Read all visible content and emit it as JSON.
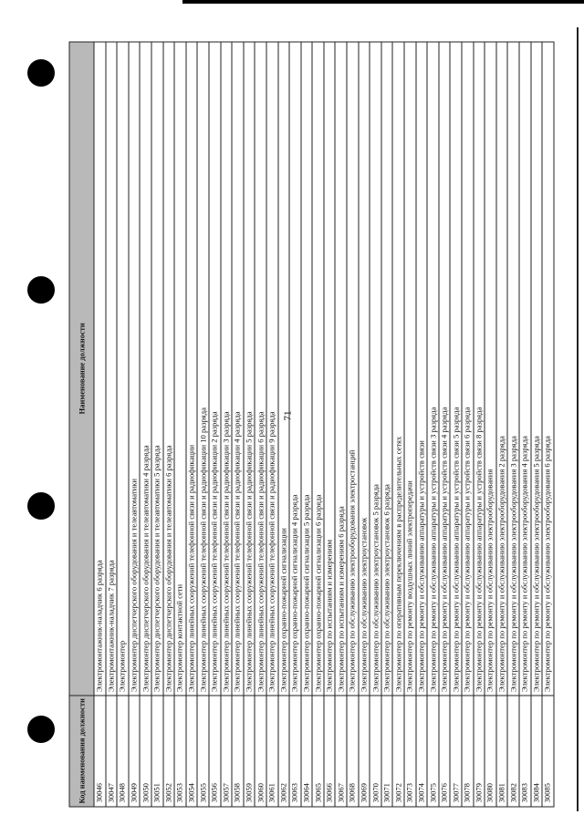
{
  "page_number": "71",
  "table": {
    "headers": {
      "code": "Код наименования должности",
      "name": "Наименование должности"
    },
    "rows": [
      {
        "code": "30046",
        "name": "Электромонтажник-наладчик 6 разряда"
      },
      {
        "code": "30047",
        "name": "Электромонтажник-наладчик 7 разряда"
      },
      {
        "code": "30048",
        "name": "Электромонтер"
      },
      {
        "code": "30049",
        "name": "Электромонтер диспетчерского оборудования и телеавтоматики"
      },
      {
        "code": "30050",
        "name": "Электромонтер диспетчерского оборудования и телеавтоматики 4 разряда"
      },
      {
        "code": "30051",
        "name": "Электромонтер диспетчерского оборудования и телеавтоматики 5 разряда"
      },
      {
        "code": "30052",
        "name": "Электромонтер диспетчерского оборудования и телеавтоматики 6 разряда"
      },
      {
        "code": "30053",
        "name": "Электромонтер контактной сети"
      },
      {
        "code": "30054",
        "name": "Электромонтер линейных сооружений телефонной связи и радиофикации"
      },
      {
        "code": "30055",
        "name": "Электромонтер линейных сооружений телефонной связи и радиофикации 10 разряда"
      },
      {
        "code": "30056",
        "name": "Электромонтер линейных сооружений телефонной связи и радиофикации 2 разряда"
      },
      {
        "code": "30057",
        "name": "Электромонтер линейных сооружений телефонной связи и радиофикации 3 разряда"
      },
      {
        "code": "30058",
        "name": "Электромонтер линейных сооружений телефонной связи и радиофикации 4 разряда"
      },
      {
        "code": "30059",
        "name": "Электромонтер линейных сооружений телефонной связи и радиофикации 5 разряда"
      },
      {
        "code": "30060",
        "name": "Электромонтер линейных сооружений телефонной связи и радиофикации 6 разряда"
      },
      {
        "code": "30061",
        "name": "Электромонтер линейных сооружений телефонной связи и радиофикации 9 разряда"
      },
      {
        "code": "30062",
        "name": "Электромонтер охранно-пожарной сигнализации"
      },
      {
        "code": "30063",
        "name": "Электромонтер охранно-пожарной сигнализации 4 разряда"
      },
      {
        "code": "30064",
        "name": "Электромонтер охранно-пожарной сигнализации 5 разряда"
      },
      {
        "code": "30065",
        "name": "Электромонтер охранно-пожарной сигнализации 6 разряда"
      },
      {
        "code": "30066",
        "name": "Электромонтер по испытаниям и измерениям"
      },
      {
        "code": "30067",
        "name": "Электромонтер по испытаниям и измерениям 6 разряда"
      },
      {
        "code": "30068",
        "name": "Электромонтер по обслуживанию электрооборудования электростанций"
      },
      {
        "code": "30069",
        "name": "Электромонтер по обслуживанию электроустановок"
      },
      {
        "code": "30070",
        "name": "Электромонтер по обслуживанию электроустановок 5 разряда"
      },
      {
        "code": "30071",
        "name": "Электромонтер по обслуживанию электроустановок 6 разряда"
      },
      {
        "code": "30072",
        "name": "Электромонтер по оперативным переключениям в распределительных сетях"
      },
      {
        "code": "30073",
        "name": "Электромонтер по ремонту воздушных линий электропередачи"
      },
      {
        "code": "30074",
        "name": "Электромонтер по ремонту и обслуживанию аппаратуры и устройств связи"
      },
      {
        "code": "30075",
        "name": "Электромонтер по ремонту и обслуживанию аппаратуры и устройств связи 3 разряда"
      },
      {
        "code": "30076",
        "name": "Электромонтер по ремонту и обслуживанию аппаратуры и устройств связи 4 разряда"
      },
      {
        "code": "30077",
        "name": "Электромонтер по ремонту и обслуживанию аппаратуры и устройств связи 5 разряда"
      },
      {
        "code": "30078",
        "name": "Электромонтер по ремонту и обслуживанию аппаратуры и устройств связи 6 разряда"
      },
      {
        "code": "30079",
        "name": "Электромонтер по ремонту и обслуживанию аппаратуры и устройств связи 8 разряда"
      },
      {
        "code": "30080",
        "name": "Электромонтер по ремонту и обслуживанию электрооборудования"
      },
      {
        "code": "30081",
        "name": "Электромонтер по ремонту и обслуживанию электрооборудования 2 разряда"
      },
      {
        "code": "30082",
        "name": "Электромонтер по ремонту и обслуживанию электрооборудования 3 разряда"
      },
      {
        "code": "30083",
        "name": "Электромонтер по ремонту и обслуживанию электрооборудования 4 разряда"
      },
      {
        "code": "30084",
        "name": "Электромонтер по ремонту и обслуживанию электрооборудования 5 разряда"
      },
      {
        "code": "30085",
        "name": "Электромонтер по ремонту и обслуживанию электрооборудования 6 разряда"
      }
    ]
  }
}
